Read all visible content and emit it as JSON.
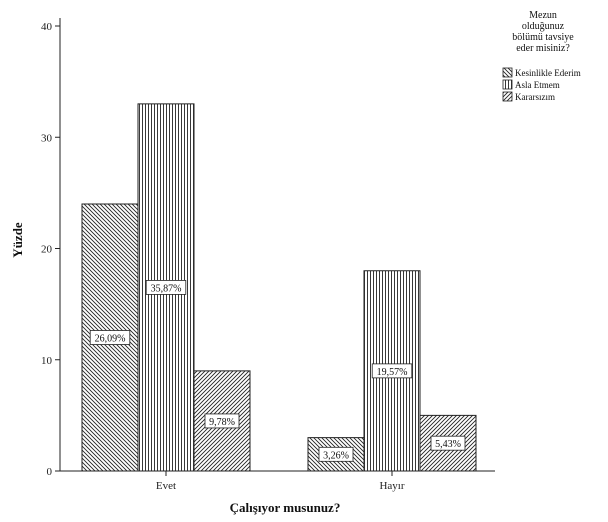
{
  "chart_data": {
    "type": "bar",
    "title": "",
    "xlabel": "Çalışıyor musunuz?",
    "ylabel": "Yüzde",
    "categories": [
      "Evet",
      "Hayır"
    ],
    "series": [
      {
        "name": "Kesinlikle Ederim",
        "values": [
          24.0,
          3.0
        ],
        "labels": [
          "26,09%",
          "3,26%"
        ]
      },
      {
        "name": "Asla Etmem",
        "values": [
          33.0,
          18.0
        ],
        "labels": [
          "35,87%",
          "19,57%"
        ]
      },
      {
        "name": "Kararsızım",
        "values": [
          9.0,
          5.0
        ],
        "labels": [
          "9,78%",
          "5,43%"
        ]
      }
    ],
    "yticks": [
      0,
      10,
      20,
      30,
      40
    ],
    "ylim": [
      0,
      40
    ],
    "grid": false,
    "legend": {
      "title_lines": [
        "Mezun",
        "olduğunuz",
        "bölümü tavsiye",
        "eder misiniz?"
      ],
      "position": "top-right"
    },
    "patterns": [
      "diagonal-back",
      "vertical",
      "diagonal-forward"
    ]
  }
}
